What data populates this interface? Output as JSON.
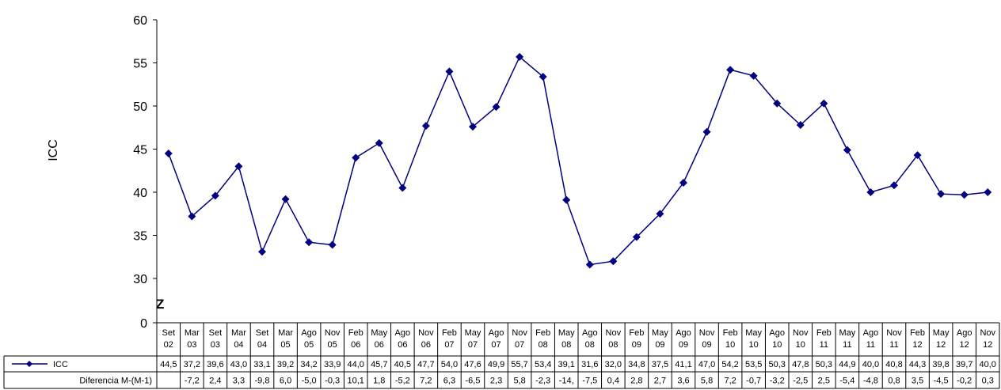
{
  "chart_data": {
    "type": "line",
    "ylabel": "ICC",
    "ylim": [
      0,
      60
    ],
    "axis_break_marker": "Z",
    "y_ticks": [
      "0",
      "30",
      "35",
      "40",
      "45",
      "50",
      "55",
      "60"
    ],
    "categories": [
      {
        "top": "Set",
        "bottom": "02"
      },
      {
        "top": "Mar",
        "bottom": "03"
      },
      {
        "top": "Set",
        "bottom": "03"
      },
      {
        "top": "Mar",
        "bottom": "04"
      },
      {
        "top": "Set",
        "bottom": "04"
      },
      {
        "top": "Mar",
        "bottom": "05"
      },
      {
        "top": "Ago",
        "bottom": "05"
      },
      {
        "top": "Nov",
        "bottom": "05"
      },
      {
        "top": "Feb",
        "bottom": "06"
      },
      {
        "top": "May",
        "bottom": "06"
      },
      {
        "top": "Ago",
        "bottom": "06"
      },
      {
        "top": "Nov",
        "bottom": "06"
      },
      {
        "top": "Feb",
        "bottom": "07"
      },
      {
        "top": "May",
        "bottom": "07"
      },
      {
        "top": "Ago",
        "bottom": "07"
      },
      {
        "top": "Nov",
        "bottom": "07"
      },
      {
        "top": "Feb",
        "bottom": "08"
      },
      {
        "top": "May",
        "bottom": "08"
      },
      {
        "top": "Ago",
        "bottom": "08"
      },
      {
        "top": "Nov",
        "bottom": "08"
      },
      {
        "top": "Feb",
        "bottom": "09"
      },
      {
        "top": "May",
        "bottom": "09"
      },
      {
        "top": "Ago",
        "bottom": "09"
      },
      {
        "top": "Nov",
        "bottom": "09"
      },
      {
        "top": "Feb",
        "bottom": "10"
      },
      {
        "top": "May",
        "bottom": "10"
      },
      {
        "top": "Ago",
        "bottom": "10"
      },
      {
        "top": "Nov",
        "bottom": "10"
      },
      {
        "top": "Feb",
        "bottom": "11"
      },
      {
        "top": "May",
        "bottom": "11"
      },
      {
        "top": "Ago",
        "bottom": "11"
      },
      {
        "top": "Nov",
        "bottom": "11"
      },
      {
        "top": "Feb",
        "bottom": "12"
      },
      {
        "top": "May",
        "bottom": "12"
      },
      {
        "top": "Ago",
        "bottom": "12"
      },
      {
        "top": "Nov",
        "bottom": "12"
      }
    ],
    "series": [
      {
        "name": "ICC",
        "color": "#000080",
        "values": [
          44.5,
          37.2,
          39.6,
          43.0,
          33.1,
          39.2,
          34.2,
          33.9,
          44.0,
          45.7,
          40.5,
          47.7,
          54.0,
          47.6,
          49.9,
          55.7,
          53.4,
          39.1,
          31.6,
          32.0,
          34.8,
          37.5,
          41.1,
          47.0,
          54.2,
          53.5,
          50.3,
          47.8,
          50.3,
          44.9,
          40.0,
          40.8,
          44.3,
          39.8,
          39.7,
          40.0
        ],
        "labels": [
          "44,5",
          "37,2",
          "39,6",
          "43,0",
          "33,1",
          "39,2",
          "34,2",
          "33,9",
          "44,0",
          "45,7",
          "40,5",
          "47,7",
          "54,0",
          "47,6",
          "49,9",
          "55,7",
          "53,4",
          "39,1",
          "31,6",
          "32,0",
          "34,8",
          "37,5",
          "41,1",
          "47,0",
          "54,2",
          "53,5",
          "50,3",
          "47,8",
          "50,3",
          "44,9",
          "40,0",
          "40,8",
          "44,3",
          "39,8",
          "39,7",
          "40,0"
        ]
      }
    ],
    "table_rows": [
      {
        "label": "ICC",
        "cells": [
          "44,5",
          "37,2",
          "39,6",
          "43,0",
          "33,1",
          "39,2",
          "34,2",
          "33,9",
          "44,0",
          "45,7",
          "40,5",
          "47,7",
          "54,0",
          "47,6",
          "49,9",
          "55,7",
          "53,4",
          "39,1",
          "31,6",
          "32,0",
          "34,8",
          "37,5",
          "41,1",
          "47,0",
          "54,2",
          "53,5",
          "50,3",
          "47,8",
          "50,3",
          "44,9",
          "40,0",
          "40,8",
          "44,3",
          "39,8",
          "39,7",
          "40,0"
        ]
      },
      {
        "label": "Diferencia M-(M-1)",
        "cells": [
          "",
          "-7,2",
          "2,4",
          "3,3",
          "-9,8",
          "6,0",
          "-5,0",
          "-0,3",
          "10,1",
          "1,8",
          "-5,2",
          "7,2",
          "6,3",
          "-6,5",
          "2,3",
          "5,8",
          "-2,3",
          "-14,",
          "-7,5",
          "0,4",
          "2,8",
          "2,7",
          "3,6",
          "5,8",
          "7,2",
          "-0,7",
          "-3,2",
          "-2,5",
          "2,5",
          "-5,4",
          "-4,8",
          "0,8",
          "3,5",
          "-4,5",
          "-0,2",
          "0,3"
        ]
      }
    ]
  }
}
